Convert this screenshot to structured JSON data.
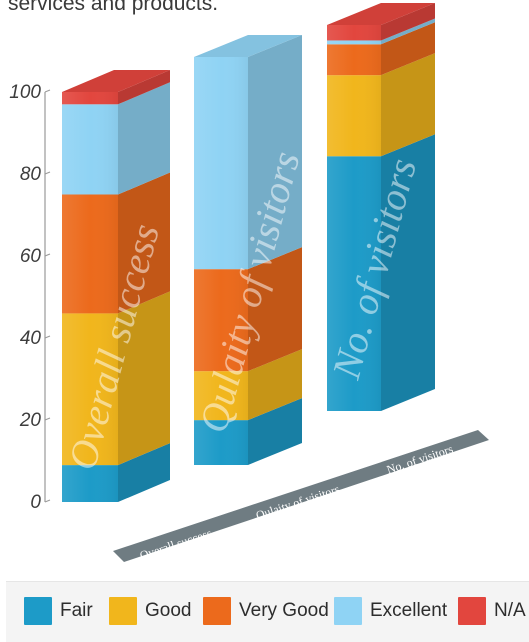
{
  "intro_text": "services and products.",
  "colors": {
    "Fair": "#1d9bc8",
    "Good": "#f1b61c",
    "Very Good": "#ec6a1c",
    "Excellent": "#8fd3f4",
    "N/A": "#e2463e"
  },
  "chart_data": {
    "type": "bar",
    "stacked": true,
    "style": "3d",
    "categories": [
      "Overall success",
      "Qulaity of visitors",
      "No. of visitors"
    ],
    "ylim": [
      0,
      100
    ],
    "yticks": [
      "0",
      "20",
      "40",
      "60",
      "80",
      "100"
    ],
    "series": [
      {
        "name": "Fair",
        "values": [
          9,
          11,
          66
        ]
      },
      {
        "name": "Good",
        "values": [
          37,
          12,
          21
        ]
      },
      {
        "name": "Very Good",
        "values": [
          29,
          25,
          8
        ]
      },
      {
        "name": "Excellent",
        "values": [
          22,
          52,
          1
        ]
      },
      {
        "name": "N/A",
        "values": [
          3,
          0,
          4
        ]
      }
    ]
  }
}
